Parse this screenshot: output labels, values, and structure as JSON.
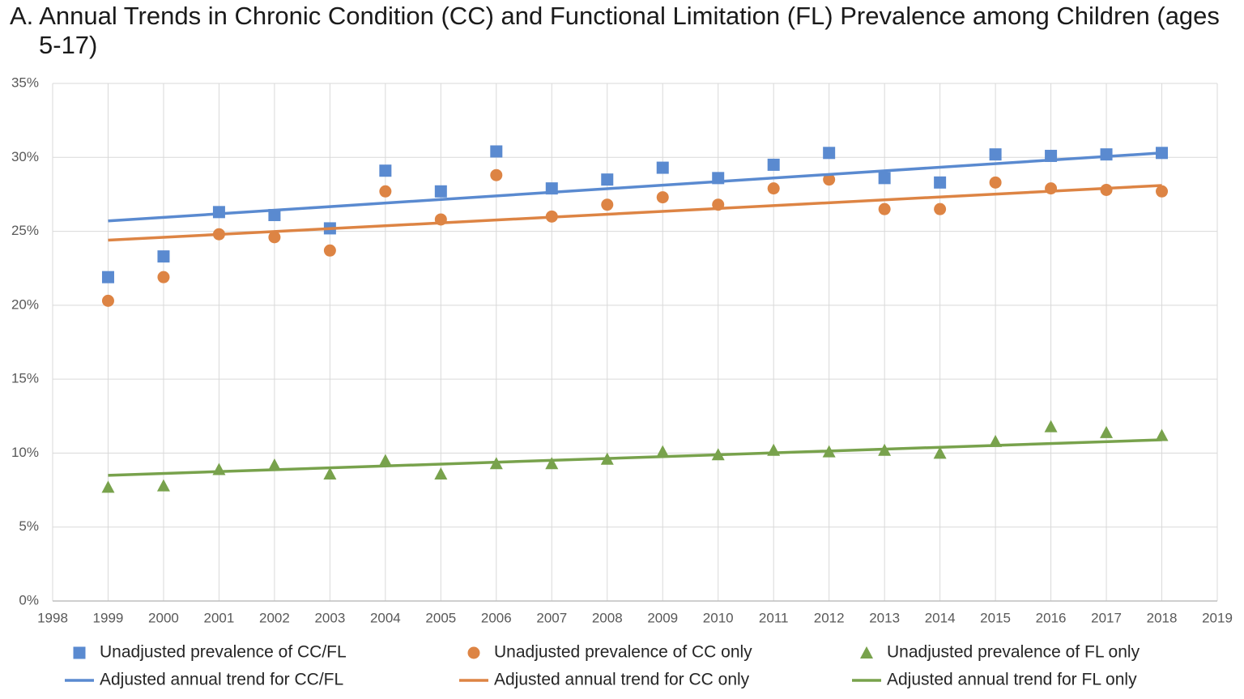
{
  "chart_data": {
    "type": "scatter",
    "title": "A. Annual Trends in Chronic Condition (CC) and Functional Limitation (FL) Prevalence among Children (ages 5-17)",
    "x": [
      1999,
      2000,
      2001,
      2002,
      2003,
      2004,
      2005,
      2006,
      2007,
      2008,
      2009,
      2010,
      2011,
      2012,
      2013,
      2014,
      2015,
      2016,
      2017,
      2018
    ],
    "xlim": [
      1998,
      2019
    ],
    "xticks": [
      1998,
      1999,
      2000,
      2001,
      2002,
      2003,
      2004,
      2005,
      2006,
      2007,
      2008,
      2009,
      2010,
      2011,
      2012,
      2013,
      2014,
      2015,
      2016,
      2017,
      2018,
      2019
    ],
    "ylim": [
      0,
      35
    ],
    "yticks": [
      {
        "value": 0,
        "label": "0%"
      },
      {
        "value": 5,
        "label": "5%"
      },
      {
        "value": 10,
        "label": "10%"
      },
      {
        "value": 15,
        "label": "15%"
      },
      {
        "value": 20,
        "label": "20%"
      },
      {
        "value": 25,
        "label": "25%"
      },
      {
        "value": 30,
        "label": "30%"
      },
      {
        "value": 35,
        "label": "35%"
      }
    ],
    "grid": true,
    "legend": "bottom",
    "series": [
      {
        "name": "Unadjusted prevalence of CC/FL",
        "color": "#5a8ad0",
        "marker": "square",
        "values": [
          21.9,
          23.3,
          26.3,
          26.1,
          25.2,
          29.1,
          27.7,
          30.4,
          27.9,
          28.5,
          29.3,
          28.6,
          29.5,
          30.3,
          28.6,
          28.3,
          30.2,
          30.1,
          30.2,
          30.3
        ]
      },
      {
        "name": "Unadjusted prevalence of CC only",
        "color": "#dd8444",
        "marker": "circle",
        "values": [
          20.3,
          21.9,
          24.8,
          24.6,
          23.7,
          27.7,
          25.8,
          28.8,
          26.0,
          26.8,
          27.3,
          26.8,
          27.9,
          28.5,
          26.5,
          26.5,
          28.3,
          27.9,
          27.8,
          27.7
        ]
      },
      {
        "name": "Unadjusted prevalence of FL only",
        "color": "#78a24c",
        "marker": "triangle",
        "values": [
          7.7,
          7.8,
          8.9,
          9.2,
          8.6,
          9.5,
          8.6,
          9.3,
          9.3,
          9.6,
          10.1,
          9.9,
          10.2,
          10.1,
          10.2,
          10.0,
          10.8,
          11.8,
          11.4,
          11.2
        ]
      },
      {
        "name": "Adjusted annual trend for CC/FL",
        "color": "#5a8ad0",
        "marker": "line",
        "x": [
          1999,
          2018
        ],
        "values": [
          25.7,
          30.3
        ]
      },
      {
        "name": "Adjusted annual trend for CC only",
        "color": "#dd8444",
        "marker": "line",
        "x": [
          1999,
          2018
        ],
        "values": [
          24.4,
          28.1
        ]
      },
      {
        "name": "Adjusted annual trend for FL only",
        "color": "#78a24c",
        "marker": "line",
        "x": [
          1999,
          2018
        ],
        "values": [
          8.5,
          10.9
        ]
      }
    ]
  }
}
